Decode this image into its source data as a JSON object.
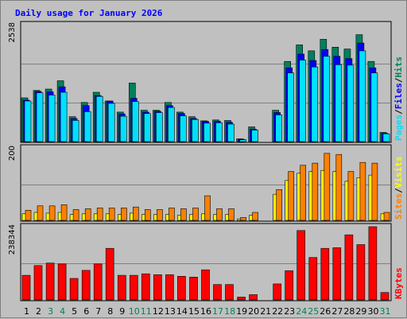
{
  "colors": {
    "background": "#c0c0c0",
    "hits": "#00805c",
    "files": "#0000ff",
    "pages": "#00e0ff",
    "visits": "#ff8000",
    "sites": "#ffff00",
    "kbytes": "#ff0000",
    "weekend_day": "#00805c",
    "title": "#0000ff"
  },
  "chart_data": {
    "type": "bar",
    "title": "Daily usage for January 2026",
    "categories": [
      "1",
      "2",
      "3",
      "4",
      "5",
      "6",
      "7",
      "8",
      "9",
      "10",
      "11",
      "12",
      "13",
      "14",
      "15",
      "16",
      "17",
      "18",
      "19",
      "20",
      "21",
      "22",
      "23",
      "24",
      "25",
      "26",
      "27",
      "28",
      "29",
      "30",
      "31"
    ],
    "weekend_days": [
      "3",
      "4",
      "10",
      "11",
      "17",
      "18",
      "24",
      "25",
      "31"
    ],
    "panels": [
      {
        "id": "traffic",
        "ymax": 2538,
        "ymax_label": "2538",
        "series": [
          {
            "name": "Hits",
            "color": "#00805c",
            "values": [
              950,
              1110,
              1140,
              1320,
              540,
              850,
              1070,
              880,
              640,
              1270,
              680,
              680,
              850,
              640,
              540,
              450,
              470,
              460,
              60,
              320,
              0,
              680,
              1740,
              2100,
              1970,
              2220,
              2050,
              2010,
              2320,
              1740,
              200
            ]
          },
          {
            "name": "Files",
            "color": "#0000ff",
            "values": [
              900,
              1090,
              1080,
              1190,
              500,
              780,
              1000,
              880,
              600,
              940,
              640,
              660,
              780,
              610,
              500,
              440,
              440,
              420,
              50,
              270,
              0,
              630,
              1600,
              1900,
              1760,
              2000,
              1850,
              1800,
              2140,
              1600,
              180
            ]
          },
          {
            "name": "Pages",
            "color": "#00e0ff",
            "values": [
              880,
              1060,
              1010,
              1070,
              460,
              650,
              980,
              830,
              550,
              870,
              610,
              630,
              740,
              560,
              480,
              400,
              410,
              380,
              40,
              250,
              0,
              580,
              1490,
              1770,
              1620,
              1850,
              1670,
              1660,
              1970,
              1490,
              170
            ]
          }
        ]
      },
      {
        "id": "visitors",
        "ymax": 200,
        "ymax_label": "200",
        "series": [
          {
            "name": "Visits",
            "color": "#ff8000",
            "values": [
              28,
              40,
              40,
              43,
              30,
              32,
              34,
              34,
              34,
              37,
              30,
              30,
              34,
              32,
              34,
              68,
              32,
              32,
              8,
              22,
              0,
              85,
              135,
              152,
              158,
              185,
              182,
              135,
              160,
              158,
              22
            ]
          },
          {
            "name": "Sites",
            "color": "#ffff00",
            "values": [
              18,
              22,
              20,
              22,
              16,
              18,
              18,
              18,
              16,
              20,
              16,
              16,
              16,
              14,
              16,
              18,
              16,
              16,
              4,
              14,
              0,
              72,
              110,
              130,
              135,
              138,
              135,
              108,
              118,
              125,
              18
            ]
          }
        ]
      },
      {
        "id": "kbytes",
        "ymax": 238344,
        "ymax_label": "238344",
        "series": [
          {
            "name": "KBytes",
            "color": "#ff0000",
            "values": [
              80000,
              112000,
              120000,
              117000,
              70000,
              96000,
              117000,
              168000,
              80000,
              80000,
              85000,
              82000,
              82000,
              77000,
              74000,
              98000,
              50000,
              50000,
              9000,
              17000,
              0,
              52000,
              95000,
              226000,
              138000,
              168000,
              170000,
              212000,
              180000,
              238344,
              24000
            ]
          }
        ]
      }
    ],
    "side_labels": [
      {
        "panel": "traffic",
        "parts": [
          {
            "text": "Pages",
            "color": "#00e0ff"
          },
          {
            "text": "/",
            "color": "#000000"
          },
          {
            "text": "Files",
            "color": "#0000ff"
          },
          {
            "text": "/",
            "color": "#000000"
          },
          {
            "text": "Hits",
            "color": "#00805c"
          }
        ]
      },
      {
        "panel": "visitors",
        "parts": [
          {
            "text": "Sites",
            "color": "#ff8000"
          },
          {
            "text": "/",
            "color": "#000000"
          },
          {
            "text": "Visits",
            "color": "#ffff00"
          }
        ]
      },
      {
        "panel": "kbytes",
        "parts": [
          {
            "text": "KBytes",
            "color": "#ff0000"
          }
        ]
      }
    ],
    "grid": true,
    "legend": "right"
  }
}
